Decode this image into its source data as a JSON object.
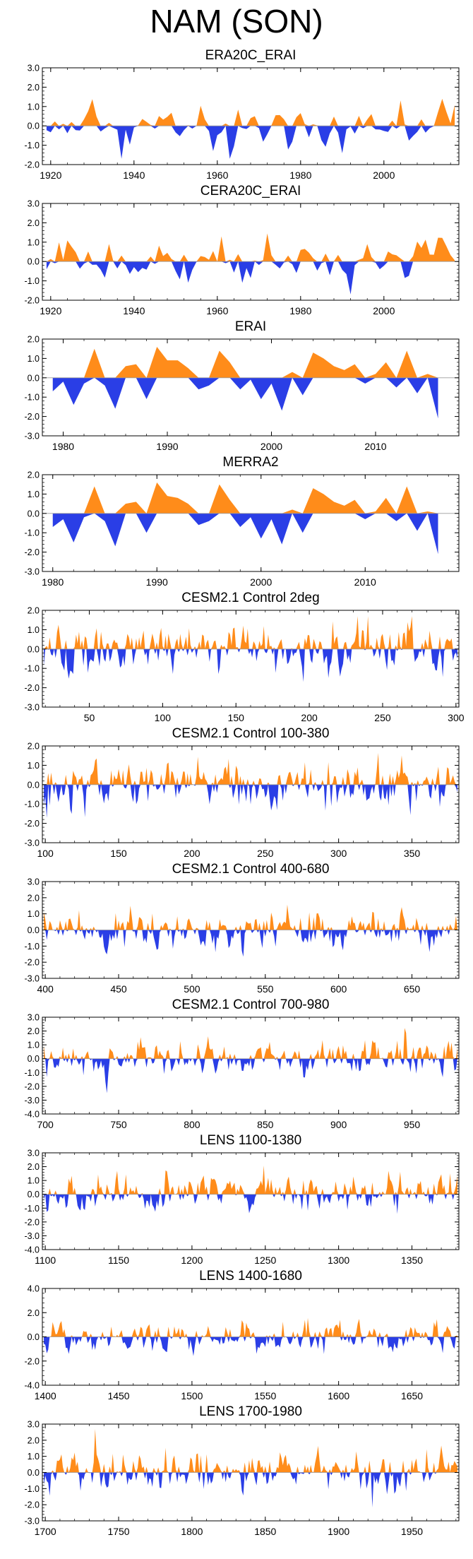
{
  "figure": {
    "title": "NAM (SON)"
  },
  "colors": {
    "positive": "#ff8c1a",
    "negative": "#2a3ee6",
    "axis": "#000000"
  },
  "chart_data": [
    {
      "type": "area",
      "title": "ERA20C_ERAI",
      "xlim": [
        1918,
        2018
      ],
      "ylim": [
        -2.0,
        3.0
      ],
      "yticks": [
        3.0,
        2.0,
        1.0,
        0.0,
        -1.0,
        -2.0
      ],
      "xticks": [
        1920,
        1940,
        1960,
        1980,
        2000
      ],
      "seed": 11,
      "amp": 1.0
    },
    {
      "type": "area",
      "title": "CERA20C_ERAI",
      "xlim": [
        1918,
        2018
      ],
      "ylim": [
        -2.0,
        3.0
      ],
      "yticks": [
        3.0,
        2.0,
        1.0,
        0.0,
        -1.0,
        -2.0
      ],
      "xticks": [
        1920,
        1940,
        1960,
        1980,
        2000
      ],
      "seed": 12,
      "amp": 1.0
    },
    {
      "type": "area",
      "title": "ERAI",
      "xlim": [
        1978,
        2018
      ],
      "ylim": [
        -3.0,
        2.0
      ],
      "yticks": [
        2.0,
        1.0,
        0.0,
        -1.0,
        -2.0,
        -3.0
      ],
      "xticks": [
        1980,
        1990,
        2000,
        2010
      ],
      "x": [
        1979,
        1980,
        1981,
        1982,
        1983,
        1984,
        1985,
        1986,
        1987,
        1988,
        1989,
        1990,
        1991,
        1992,
        1993,
        1994,
        1995,
        1996,
        1997,
        1998,
        1999,
        2000,
        2001,
        2002,
        2003,
        2004,
        2005,
        2006,
        2007,
        2008,
        2009,
        2010,
        2011,
        2012,
        2013,
        2014,
        2015,
        2016
      ],
      "y": [
        -0.7,
        -0.2,
        -1.4,
        -0.3,
        1.5,
        -0.4,
        -1.6,
        0.6,
        0.7,
        -1.1,
        1.6,
        0.9,
        0.9,
        0.5,
        -0.6,
        -0.4,
        1.4,
        0.8,
        -0.6,
        -0.1,
        -1.1,
        -0.3,
        -1.7,
        0.3,
        -0.9,
        1.3,
        1.0,
        0.6,
        0.4,
        0.7,
        -0.3,
        0.2,
        0.8,
        -0.5,
        1.4,
        -0.8,
        0.2,
        -2.1
      ]
    },
    {
      "type": "area",
      "title": "MERRA2",
      "xlim": [
        1979,
        2019
      ],
      "ylim": [
        -3.0,
        2.0
      ],
      "yticks": [
        2.0,
        1.0,
        0.0,
        -1.0,
        -2.0,
        -3.0
      ],
      "xticks": [
        1980,
        1990,
        2000,
        2010
      ],
      "x": [
        1980,
        1981,
        1982,
        1983,
        1984,
        1985,
        1986,
        1987,
        1988,
        1989,
        1990,
        1991,
        1992,
        1993,
        1994,
        1995,
        1996,
        1997,
        1998,
        1999,
        2000,
        2001,
        2002,
        2003,
        2004,
        2005,
        2006,
        2007,
        2008,
        2009,
        2010,
        2011,
        2012,
        2013,
        2014,
        2015,
        2016,
        2017
      ],
      "y": [
        -0.7,
        -0.3,
        -1.5,
        -0.2,
        1.4,
        -0.4,
        -1.7,
        0.5,
        0.6,
        -1.0,
        1.6,
        0.9,
        0.8,
        0.5,
        -0.6,
        -0.4,
        1.5,
        0.7,
        -0.7,
        -0.2,
        -1.3,
        -0.3,
        -1.6,
        0.2,
        -1.0,
        1.3,
        1.0,
        0.6,
        0.4,
        0.7,
        -0.3,
        0.1,
        0.8,
        -0.4,
        1.4,
        -0.9,
        0.1,
        -2.1
      ]
    },
    {
      "type": "area",
      "title": "CESM2.1 Control 2deg",
      "xlim": [
        18,
        302
      ],
      "ylim": [
        -3.0,
        2.0
      ],
      "yticks": [
        2.0,
        1.0,
        0.0,
        -1.0,
        -2.0,
        -3.0
      ],
      "xticks": [
        50,
        100,
        150,
        200,
        250,
        300
      ],
      "seed": 21,
      "amp": 1.0
    },
    {
      "type": "area",
      "title": "CESM2.1 Control 100-380",
      "xlim": [
        98,
        382
      ],
      "ylim": [
        -3.0,
        2.0
      ],
      "yticks": [
        2.0,
        1.0,
        0.0,
        -1.0,
        -2.0,
        -3.0
      ],
      "xticks": [
        100,
        150,
        200,
        250,
        300,
        350
      ],
      "seed": 22,
      "amp": 1.0
    },
    {
      "type": "area",
      "title": "CESM2.1 Control 400-680",
      "xlim": [
        398,
        682
      ],
      "ylim": [
        -3.0,
        3.0
      ],
      "yticks": [
        3.0,
        2.0,
        1.0,
        0.0,
        -1.0,
        -2.0,
        -3.0
      ],
      "xticks": [
        400,
        450,
        500,
        550,
        600,
        650
      ],
      "seed": 23,
      "amp": 1.0
    },
    {
      "type": "area",
      "title": "CESM2.1 Control 700-980",
      "xlim": [
        698,
        982
      ],
      "ylim": [
        -4.0,
        3.0
      ],
      "yticks": [
        3.0,
        2.0,
        1.0,
        0.0,
        -1.0,
        -2.0,
        -3.0,
        -4.0
      ],
      "xticks": [
        700,
        750,
        800,
        850,
        900,
        950
      ],
      "seed": 24,
      "amp": 1.0
    },
    {
      "type": "area",
      "title": "LENS 1100-1380",
      "xlim": [
        1098,
        1382
      ],
      "ylim": [
        -4.0,
        3.0
      ],
      "yticks": [
        3.0,
        2.0,
        1.0,
        0.0,
        -1.0,
        -2.0,
        -3.0,
        -4.0
      ],
      "xticks": [
        1100,
        1150,
        1200,
        1250,
        1300,
        1350
      ],
      "seed": 25,
      "amp": 1.0
    },
    {
      "type": "area",
      "title": "LENS 1400-1680",
      "xlim": [
        1398,
        1682
      ],
      "ylim": [
        -4.0,
        4.0
      ],
      "yticks": [
        4.0,
        2.0,
        0.0,
        -2.0,
        -4.0
      ],
      "xticks": [
        1400,
        1450,
        1500,
        1550,
        1600,
        1650
      ],
      "seed": 26,
      "amp": 1.0
    },
    {
      "type": "area",
      "title": "LENS 1700-1980",
      "xlim": [
        1698,
        1982
      ],
      "ylim": [
        -3.0,
        3.0
      ],
      "yticks": [
        3.0,
        2.0,
        1.0,
        0.0,
        -1.0,
        -2.0,
        -3.0
      ],
      "xticks": [
        1700,
        1750,
        1800,
        1850,
        1900,
        1950
      ],
      "seed": 27,
      "amp": 1.0
    }
  ]
}
